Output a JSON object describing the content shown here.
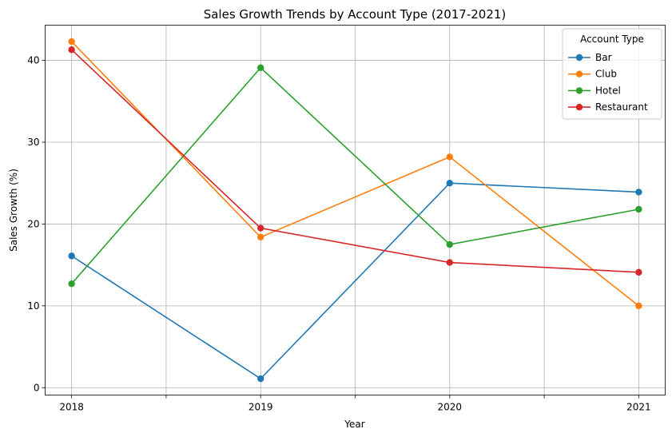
{
  "chart_data": {
    "type": "line",
    "title": "Sales Growth Trends by Account Type (2017-2021)",
    "xlabel": "Year",
    "ylabel": "Sales Growth (%)",
    "x": [
      2018,
      2019,
      2020,
      2021
    ],
    "x_tick_labels": [
      "2018",
      "2019",
      "2020",
      "2021"
    ],
    "x_minor_ticks": [
      2018.5,
      2019.5,
      2020.5
    ],
    "xlim": [
      2017.86,
      2021.14
    ],
    "y_ticks": [
      0,
      10,
      20,
      30,
      40
    ],
    "ylim": [
      -0.9,
      44.3
    ],
    "grid": true,
    "legend": {
      "title": "Account Type",
      "placement": "top-right"
    },
    "series": [
      {
        "name": "Bar",
        "color": "#1f77b4",
        "values": [
          16.1,
          1.1,
          25.0,
          23.9
        ]
      },
      {
        "name": "Club",
        "color": "#ff7f0e",
        "values": [
          42.3,
          18.4,
          28.2,
          10.0
        ]
      },
      {
        "name": "Hotel",
        "color": "#2ca02c",
        "values": [
          12.7,
          39.1,
          17.5,
          21.8
        ]
      },
      {
        "name": "Restaurant",
        "color": "#d62728",
        "values": [
          41.3,
          19.5,
          15.3,
          14.1
        ]
      }
    ]
  }
}
